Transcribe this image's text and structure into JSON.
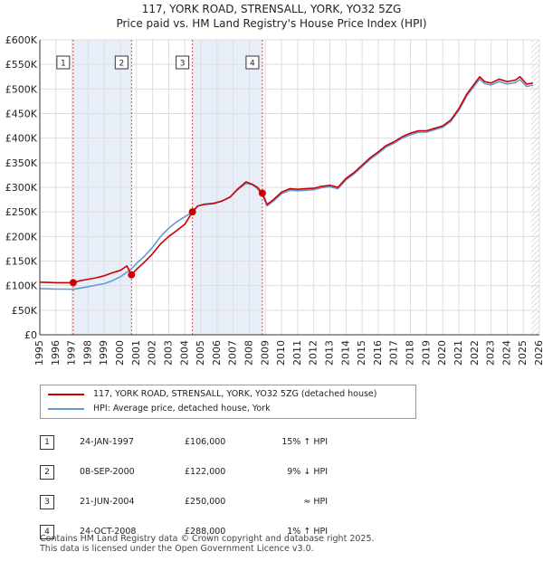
{
  "title_line1": "117, YORK ROAD, STRENSALL, YORK, YO32 5ZG",
  "title_line2": "Price paid vs. HM Land Registry's House Price Index (HPI)",
  "chart_data": {
    "type": "line",
    "xlim": [
      1995,
      2026
    ],
    "ylim": [
      0,
      600000
    ],
    "x_ticks": [
      "1995",
      "1996",
      "1997",
      "1998",
      "1999",
      "2000",
      "2001",
      "2002",
      "2003",
      "2004",
      "2005",
      "2006",
      "2007",
      "2008",
      "2009",
      "2010",
      "2011",
      "2012",
      "2013",
      "2014",
      "2015",
      "2016",
      "2017",
      "2018",
      "2019",
      "2020",
      "2021",
      "2022",
      "2023",
      "2024",
      "2025",
      "2026"
    ],
    "y_ticks": [
      {
        "value": 0,
        "label": "£0"
      },
      {
        "value": 50000,
        "label": "£50K"
      },
      {
        "value": 100000,
        "label": "£100K"
      },
      {
        "value": 150000,
        "label": "£150K"
      },
      {
        "value": 200000,
        "label": "£200K"
      },
      {
        "value": 250000,
        "label": "£250K"
      },
      {
        "value": 300000,
        "label": "£300K"
      },
      {
        "value": 350000,
        "label": "£350K"
      },
      {
        "value": 400000,
        "label": "£400K"
      },
      {
        "value": 450000,
        "label": "£450K"
      },
      {
        "value": 500000,
        "label": "£500K"
      },
      {
        "value": 550000,
        "label": "£550K"
      },
      {
        "value": 600000,
        "label": "£600K"
      }
    ],
    "series": [
      {
        "name": "117, YORK ROAD, STRENSALL, YORK, YO32 5ZG (detached house)",
        "color": "#cc0000",
        "points": [
          [
            1995.0,
            107000
          ],
          [
            1995.5,
            106500
          ],
          [
            1996.0,
            106000
          ],
          [
            1996.5,
            106000
          ],
          [
            1997.07,
            106000
          ],
          [
            1997.5,
            110000
          ],
          [
            1998.0,
            113000
          ],
          [
            1998.5,
            116000
          ],
          [
            1999.0,
            120000
          ],
          [
            1999.5,
            126000
          ],
          [
            2000.0,
            131000
          ],
          [
            2000.4,
            140000
          ],
          [
            2000.69,
            122000
          ],
          [
            2001.0,
            133000
          ],
          [
            2001.5,
            148000
          ],
          [
            2002.0,
            165000
          ],
          [
            2002.5,
            185000
          ],
          [
            2003.0,
            200000
          ],
          [
            2003.5,
            212000
          ],
          [
            2004.0,
            225000
          ],
          [
            2004.47,
            250000
          ],
          [
            2004.8,
            262000
          ],
          [
            2005.2,
            265000
          ],
          [
            2005.8,
            267000
          ],
          [
            2006.3,
            272000
          ],
          [
            2006.8,
            280000
          ],
          [
            2007.3,
            297000
          ],
          [
            2007.8,
            311000
          ],
          [
            2008.2,
            306000
          ],
          [
            2008.5,
            300000
          ],
          [
            2008.81,
            288000
          ],
          [
            2009.1,
            265000
          ],
          [
            2009.5,
            275000
          ],
          [
            2010.0,
            290000
          ],
          [
            2010.5,
            297000
          ],
          [
            2011.0,
            296000
          ],
          [
            2011.5,
            297000
          ],
          [
            2012.0,
            298000
          ],
          [
            2012.5,
            302000
          ],
          [
            2013.0,
            304000
          ],
          [
            2013.5,
            300000
          ],
          [
            2014.0,
            318000
          ],
          [
            2014.5,
            330000
          ],
          [
            2015.0,
            345000
          ],
          [
            2015.5,
            360000
          ],
          [
            2016.0,
            372000
          ],
          [
            2016.5,
            385000
          ],
          [
            2017.0,
            393000
          ],
          [
            2017.5,
            403000
          ],
          [
            2018.0,
            410000
          ],
          [
            2018.5,
            415000
          ],
          [
            2019.0,
            415000
          ],
          [
            2019.5,
            420000
          ],
          [
            2020.0,
            425000
          ],
          [
            2020.5,
            437000
          ],
          [
            2021.0,
            460000
          ],
          [
            2021.5,
            490000
          ],
          [
            2022.0,
            512000
          ],
          [
            2022.3,
            525000
          ],
          [
            2022.6,
            515000
          ],
          [
            2023.0,
            512000
          ],
          [
            2023.5,
            520000
          ],
          [
            2024.0,
            515000
          ],
          [
            2024.5,
            518000
          ],
          [
            2024.8,
            525000
          ],
          [
            2025.2,
            510000
          ],
          [
            2025.6,
            512000
          ]
        ]
      },
      {
        "name": "HPI: Average price, detached house, York",
        "color": "#6699cc",
        "points": [
          [
            1995.0,
            94000
          ],
          [
            1995.5,
            93500
          ],
          [
            1996.0,
            93000
          ],
          [
            1996.5,
            93000
          ],
          [
            1997.07,
            92500
          ],
          [
            1997.5,
            95000
          ],
          [
            1998.0,
            98000
          ],
          [
            1998.5,
            101000
          ],
          [
            1999.0,
            104000
          ],
          [
            1999.5,
            110000
          ],
          [
            2000.0,
            118000
          ],
          [
            2000.69,
            134000
          ],
          [
            2001.0,
            145000
          ],
          [
            2001.5,
            160000
          ],
          [
            2002.0,
            178000
          ],
          [
            2002.5,
            200000
          ],
          [
            2003.0,
            217000
          ],
          [
            2003.5,
            230000
          ],
          [
            2004.0,
            240000
          ],
          [
            2004.47,
            250000
          ],
          [
            2004.8,
            262000
          ],
          [
            2005.2,
            266000
          ],
          [
            2005.8,
            268000
          ],
          [
            2006.3,
            272000
          ],
          [
            2006.8,
            280000
          ],
          [
            2007.3,
            296000
          ],
          [
            2007.8,
            308000
          ],
          [
            2008.2,
            305000
          ],
          [
            2008.5,
            297000
          ],
          [
            2008.81,
            285000
          ],
          [
            2009.1,
            262000
          ],
          [
            2009.5,
            272000
          ],
          [
            2010.0,
            287000
          ],
          [
            2010.5,
            294000
          ],
          [
            2011.0,
            293000
          ],
          [
            2011.5,
            294000
          ],
          [
            2012.0,
            295000
          ],
          [
            2012.5,
            299000
          ],
          [
            2013.0,
            301000
          ],
          [
            2013.5,
            297000
          ],
          [
            2014.0,
            315000
          ],
          [
            2014.5,
            327000
          ],
          [
            2015.0,
            342000
          ],
          [
            2015.5,
            357000
          ],
          [
            2016.0,
            369000
          ],
          [
            2016.5,
            382000
          ],
          [
            2017.0,
            390000
          ],
          [
            2017.5,
            400000
          ],
          [
            2018.0,
            407000
          ],
          [
            2018.5,
            412000
          ],
          [
            2019.0,
            412000
          ],
          [
            2019.5,
            417000
          ],
          [
            2020.0,
            422000
          ],
          [
            2020.5,
            434000
          ],
          [
            2021.0,
            456000
          ],
          [
            2021.5,
            486000
          ],
          [
            2022.0,
            508000
          ],
          [
            2022.3,
            520000
          ],
          [
            2022.6,
            511000
          ],
          [
            2023.0,
            508000
          ],
          [
            2023.5,
            515000
          ],
          [
            2024.0,
            510000
          ],
          [
            2024.5,
            513000
          ],
          [
            2024.8,
            519000
          ],
          [
            2025.2,
            505000
          ],
          [
            2025.6,
            508000
          ]
        ]
      }
    ],
    "sales": [
      {
        "label": "1",
        "x": 1997.07,
        "price": 106000
      },
      {
        "label": "2",
        "x": 2000.69,
        "price": 122000
      },
      {
        "label": "3",
        "x": 2004.47,
        "price": 250000
      },
      {
        "label": "4",
        "x": 2008.81,
        "price": 288000
      }
    ],
    "shaded_ranges": [
      [
        1997.07,
        2000.69
      ],
      [
        2004.47,
        2008.81
      ]
    ],
    "hatch_from": 2025.5,
    "legend_position": "below"
  },
  "legend": {
    "entries": [
      {
        "label": "117, YORK ROAD, STRENSALL, YORK, YO32 5ZG (detached house)",
        "color": "#cc0000"
      },
      {
        "label": "HPI: Average price, detached house, York",
        "color": "#6699cc"
      }
    ]
  },
  "transactions": [
    {
      "num": "1",
      "date": "24-JAN-1997",
      "price": "£106,000",
      "hpi": "15% ↑ HPI"
    },
    {
      "num": "2",
      "date": "08-SEP-2000",
      "price": "£122,000",
      "hpi": "9% ↓ HPI"
    },
    {
      "num": "3",
      "date": "21-JUN-2004",
      "price": "£250,000",
      "hpi": "≈ HPI"
    },
    {
      "num": "4",
      "date": "24-OCT-2008",
      "price": "£288,000",
      "hpi": "1% ↑ HPI"
    }
  ],
  "footer": {
    "line1": "Contains HM Land Registry data © Crown copyright and database right 2025.",
    "line2": "This data is licensed under the Open Government Licence v3.0."
  }
}
